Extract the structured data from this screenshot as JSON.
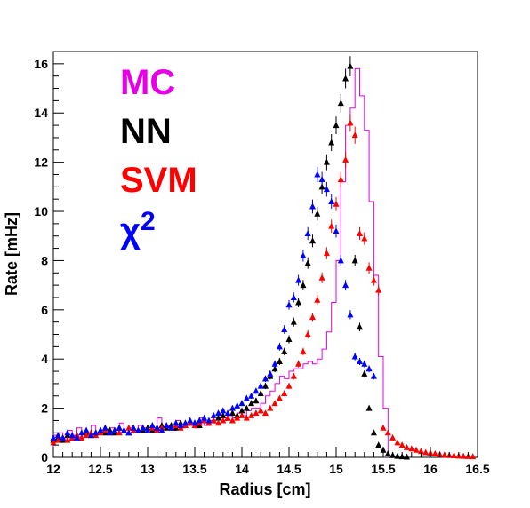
{
  "chart_data": {
    "type": "scatter",
    "title": "",
    "xlabel": "Radius [cm]",
    "ylabel": "Rate [mHz]",
    "xlim": [
      12,
      16.5
    ],
    "ylim": [
      0,
      16.5
    ],
    "grid": false,
    "legend_position": "top-left",
    "x_ticks": [
      12,
      12.5,
      13,
      13.5,
      14,
      14.5,
      15,
      15.5,
      16,
      16.5
    ],
    "x_tick_labels": [
      "12",
      "12.5",
      "13",
      "13.5",
      "14",
      "14.5",
      "15",
      "15.5",
      "16",
      "16.5"
    ],
    "y_ticks": [
      0,
      2,
      4,
      6,
      8,
      10,
      12,
      14,
      16
    ],
    "y_tick_labels": [
      "0",
      "2",
      "4",
      "6",
      "8",
      "10",
      "12",
      "14",
      "16"
    ],
    "legend": [
      {
        "text": "MC",
        "color": "#e600e6"
      },
      {
        "text": "NN",
        "color": "#000000"
      },
      {
        "text": "SVM",
        "color": "#ff0000"
      },
      {
        "text": "χ",
        "sup": "2",
        "color": "#0000ff"
      }
    ],
    "series": [
      {
        "name": "MC",
        "style": "histogram",
        "color": "#e600e6",
        "bin_width": 0.05,
        "x": [
          12.0,
          12.05,
          12.1,
          12.15,
          12.2,
          12.25,
          12.3,
          12.35,
          12.4,
          12.45,
          12.5,
          12.55,
          12.6,
          12.65,
          12.7,
          12.75,
          12.8,
          12.85,
          12.9,
          12.95,
          13.0,
          13.05,
          13.1,
          13.15,
          13.2,
          13.25,
          13.3,
          13.35,
          13.4,
          13.45,
          13.5,
          13.55,
          13.6,
          13.65,
          13.7,
          13.75,
          13.8,
          13.85,
          13.9,
          13.95,
          14.0,
          14.05,
          14.1,
          14.15,
          14.2,
          14.25,
          14.3,
          14.35,
          14.4,
          14.45,
          14.5,
          14.55,
          14.6,
          14.65,
          14.7,
          14.75,
          14.8,
          14.85,
          14.9,
          14.95,
          15.0,
          15.05,
          15.1,
          15.15,
          15.2,
          15.25,
          15.3,
          15.35,
          15.4,
          15.45,
          15.5
        ],
        "values": [
          0.9,
          1.0,
          0.8,
          1.1,
          0.9,
          1.2,
          1.0,
          0.9,
          1.3,
          1.0,
          1.1,
          1.0,
          1.2,
          1.1,
          1.4,
          1.0,
          1.2,
          1.1,
          1.3,
          1.2,
          1.0,
          1.1,
          1.6,
          1.2,
          1.3,
          1.1,
          1.5,
          1.2,
          1.3,
          1.4,
          1.2,
          1.6,
          1.3,
          1.5,
          1.4,
          1.6,
          1.5,
          1.7,
          1.6,
          1.8,
          1.7,
          1.9,
          2.0,
          2.0,
          2.2,
          2.5,
          2.7,
          3.0,
          3.3,
          3.2,
          3.5,
          3.6,
          3.6,
          3.8,
          3.9,
          3.8,
          4.0,
          4.4,
          5.1,
          6.3,
          8.0,
          11.2,
          13.5,
          14.2,
          15.8,
          14.7,
          13.3,
          10.4,
          7.4,
          4.1,
          2.0
        ]
      },
      {
        "name": "NN",
        "marker": "triangle",
        "color": "#000000",
        "x": [
          12.0,
          12.05,
          12.1,
          12.15,
          12.2,
          12.25,
          12.3,
          12.35,
          12.4,
          12.45,
          12.5,
          12.55,
          12.6,
          12.65,
          12.7,
          12.75,
          12.8,
          12.85,
          12.9,
          12.95,
          13.0,
          13.05,
          13.1,
          13.15,
          13.2,
          13.25,
          13.3,
          13.35,
          13.4,
          13.45,
          13.5,
          13.55,
          13.6,
          13.65,
          13.7,
          13.75,
          13.8,
          13.85,
          13.9,
          13.95,
          14.0,
          14.05,
          14.1,
          14.15,
          14.2,
          14.25,
          14.3,
          14.35,
          14.4,
          14.45,
          14.5,
          14.55,
          14.6,
          14.65,
          14.7,
          14.75,
          14.8,
          14.85,
          14.9,
          14.95,
          15.0,
          15.05,
          15.1,
          15.15,
          15.2,
          15.25,
          15.3,
          15.35,
          15.4,
          15.45,
          15.5,
          15.55,
          15.6,
          15.65,
          15.7,
          15.75
        ],
        "values": [
          0.7,
          0.8,
          0.7,
          0.9,
          0.8,
          0.9,
          0.8,
          1.0,
          0.9,
          1.0,
          1.1,
          1.0,
          1.1,
          1.0,
          1.2,
          1.1,
          1.0,
          1.2,
          1.1,
          1.1,
          1.2,
          1.1,
          1.2,
          1.3,
          1.2,
          1.3,
          1.2,
          1.4,
          1.3,
          1.4,
          1.4,
          1.3,
          1.5,
          1.4,
          1.5,
          1.6,
          1.7,
          1.6,
          1.8,
          1.7,
          1.9,
          2.0,
          2.2,
          2.3,
          2.6,
          2.9,
          3.3,
          3.6,
          3.9,
          4.3,
          4.8,
          5.5,
          6.3,
          7.0,
          7.9,
          8.8,
          9.9,
          11.0,
          12.0,
          12.8,
          13.5,
          14.4,
          15.4,
          15.9,
          8.0,
          5.3,
          3.4,
          2.0,
          1.0,
          0.5,
          0.3,
          0.15,
          0.08,
          0.05,
          0.03,
          0.02
        ]
      },
      {
        "name": "SVM",
        "marker": "triangle",
        "color": "#ff0000",
        "x": [
          12.0,
          12.05,
          12.1,
          12.15,
          12.2,
          12.25,
          12.3,
          12.35,
          12.4,
          12.45,
          12.5,
          12.55,
          12.6,
          12.65,
          12.7,
          12.75,
          12.8,
          12.85,
          12.9,
          12.95,
          13.0,
          13.05,
          13.1,
          13.15,
          13.2,
          13.25,
          13.3,
          13.35,
          13.4,
          13.45,
          13.5,
          13.55,
          13.6,
          13.65,
          13.7,
          13.75,
          13.8,
          13.85,
          13.9,
          13.95,
          14.0,
          14.05,
          14.1,
          14.15,
          14.2,
          14.25,
          14.3,
          14.35,
          14.4,
          14.45,
          14.5,
          14.55,
          14.6,
          14.65,
          14.7,
          14.75,
          14.8,
          14.85,
          14.9,
          14.95,
          15.0,
          15.05,
          15.1,
          15.15,
          15.2,
          15.25,
          15.3,
          15.35,
          15.4,
          15.45,
          15.5,
          15.55,
          15.6,
          15.65,
          15.7,
          15.75,
          15.8,
          15.85,
          15.9,
          15.95,
          16.0,
          16.05,
          16.1,
          16.15,
          16.2,
          16.25,
          16.3,
          16.35,
          16.4,
          16.45
        ],
        "values": [
          0.6,
          0.7,
          0.8,
          0.7,
          0.8,
          0.9,
          0.8,
          0.9,
          1.0,
          0.9,
          1.0,
          1.1,
          1.0,
          1.1,
          1.0,
          1.1,
          1.2,
          1.1,
          1.1,
          1.2,
          1.1,
          1.2,
          1.1,
          1.2,
          1.3,
          1.2,
          1.3,
          1.2,
          1.3,
          1.4,
          1.3,
          1.4,
          1.5,
          1.4,
          1.5,
          1.4,
          1.5,
          1.6,
          1.5,
          1.6,
          1.7,
          1.6,
          1.7,
          1.8,
          1.9,
          1.8,
          2.0,
          2.2,
          2.4,
          2.6,
          2.9,
          3.3,
          3.8,
          4.3,
          5.0,
          5.7,
          6.4,
          7.3,
          8.3,
          9.4,
          10.3,
          11.3,
          12.1,
          13.6,
          13.1,
          9.1,
          8.9,
          7.7,
          7.2,
          6.8,
          1.2,
          1.0,
          0.8,
          0.6,
          0.5,
          0.4,
          0.35,
          0.3,
          0.25,
          0.2,
          0.18,
          0.15,
          0.12,
          0.1,
          0.08,
          0.07,
          0.06,
          0.05,
          0.04,
          0.03
        ]
      },
      {
        "name": "χ2",
        "marker": "triangle",
        "color": "#0000ff",
        "x": [
          12.0,
          12.05,
          12.1,
          12.15,
          12.2,
          12.25,
          12.3,
          12.35,
          12.4,
          12.45,
          12.5,
          12.55,
          12.6,
          12.65,
          12.7,
          12.75,
          12.8,
          12.85,
          12.9,
          12.95,
          13.0,
          13.05,
          13.1,
          13.15,
          13.2,
          13.25,
          13.3,
          13.35,
          13.4,
          13.45,
          13.5,
          13.55,
          13.6,
          13.65,
          13.7,
          13.75,
          13.8,
          13.85,
          13.9,
          13.95,
          14.0,
          14.05,
          14.1,
          14.15,
          14.2,
          14.25,
          14.3,
          14.35,
          14.4,
          14.45,
          14.5,
          14.55,
          14.6,
          14.65,
          14.7,
          14.75,
          14.8,
          14.85,
          14.9,
          14.95,
          15.0,
          15.05,
          15.1,
          15.15,
          15.2,
          15.25,
          15.3,
          15.35,
          15.4
        ],
        "values": [
          0.8,
          0.9,
          0.8,
          1.0,
          0.9,
          0.8,
          1.0,
          1.1,
          0.9,
          1.0,
          1.1,
          1.2,
          1.0,
          1.1,
          1.2,
          1.1,
          1.0,
          1.2,
          1.1,
          1.2,
          1.1,
          1.3,
          1.2,
          1.1,
          1.3,
          1.2,
          1.4,
          1.3,
          1.4,
          1.5,
          1.4,
          1.5,
          1.6,
          1.5,
          1.7,
          1.8,
          1.9,
          1.8,
          2.0,
          2.1,
          2.2,
          2.4,
          2.5,
          2.7,
          2.9,
          3.2,
          3.4,
          3.8,
          4.5,
          5.2,
          6.2,
          6.5,
          7.2,
          8.2,
          9.1,
          10.2,
          11.5,
          11.3,
          10.9,
          10.4,
          9.2,
          8.0,
          7.0,
          5.8,
          4.1,
          3.9,
          3.8,
          3.6,
          3.3
        ]
      }
    ]
  }
}
